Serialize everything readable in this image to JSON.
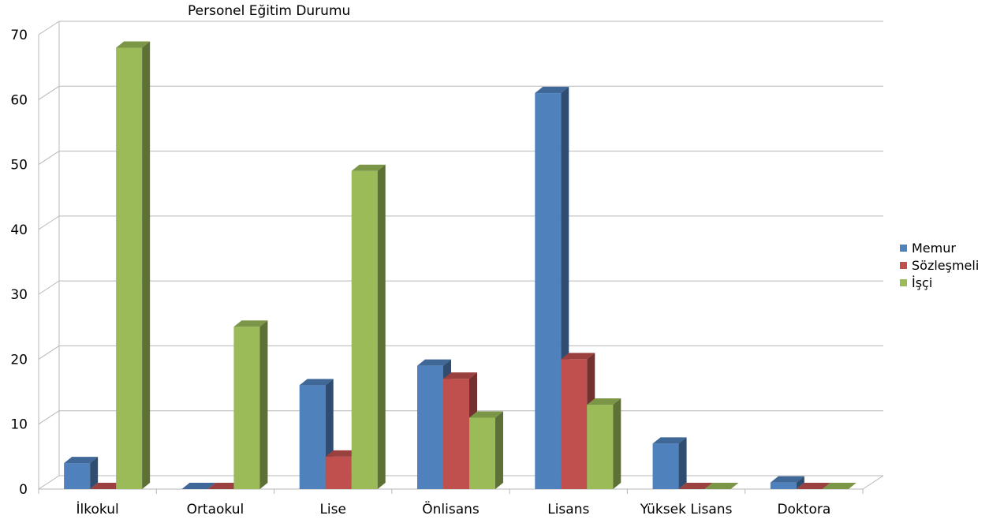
{
  "chart_data": {
    "type": "bar",
    "title": "Personel Eğitim Durumu",
    "categories": [
      "İlkokul",
      "Ortaokul",
      "Lise",
      "Önlisans",
      "Lisans",
      "Yüksek Lisans",
      "Doktora"
    ],
    "series": [
      {
        "name": "Memur",
        "color": "#4F81BD",
        "values": [
          4,
          0,
          16,
          19,
          61,
          7,
          1
        ]
      },
      {
        "name": "Sözleşmeli",
        "color": "#C0504D",
        "values": [
          0,
          0,
          5,
          17,
          20,
          0,
          0
        ]
      },
      {
        "name": "İşçi",
        "color": "#9BBB59",
        "values": [
          68,
          25,
          49,
          11,
          13,
          0,
          0
        ]
      }
    ],
    "ylim": [
      0,
      70
    ],
    "yticks": [
      0,
      10,
      20,
      30,
      40,
      50,
      60,
      70
    ],
    "grid": true,
    "legend": "right"
  }
}
